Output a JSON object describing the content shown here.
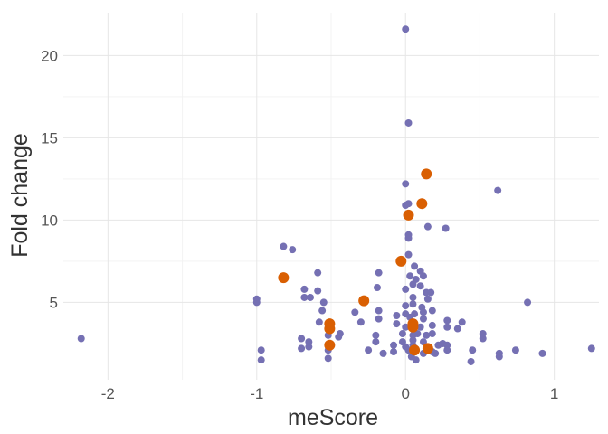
{
  "chart_data": {
    "type": "scatter",
    "xlabel": "meScore",
    "ylabel": "Fold change",
    "xlim": [
      -2.3,
      1.3
    ],
    "ylim": [
      0.3,
      22.6
    ],
    "x_ticks": [
      -2,
      -1,
      0,
      1
    ],
    "x_tick_labels": [
      "-2",
      "-1",
      "0",
      "1"
    ],
    "y_ticks": [
      5,
      10,
      15,
      20
    ],
    "y_tick_labels": [
      "5",
      "10",
      "15",
      "20"
    ],
    "grid": true,
    "legend": "none",
    "colors": {
      "series_a": "#7570b3",
      "series_b": "#d95f02"
    },
    "series": [
      {
        "color": "#7570b3",
        "marker_size": "small",
        "points": [
          [
            0.0,
            21.6
          ],
          [
            0.02,
            15.9
          ],
          [
            0.62,
            11.8
          ],
          [
            0.0,
            12.2
          ],
          [
            0.02,
            11.0
          ],
          [
            0.0,
            10.9
          ],
          [
            0.15,
            9.6
          ],
          [
            0.27,
            9.5
          ],
          [
            0.02,
            9.1
          ],
          [
            0.02,
            8.9
          ],
          [
            -0.82,
            8.4
          ],
          [
            -0.76,
            8.2
          ],
          [
            0.02,
            7.9
          ],
          [
            0.06,
            7.2
          ],
          [
            0.1,
            6.9
          ],
          [
            0.12,
            6.6
          ],
          [
            -0.59,
            6.8
          ],
          [
            -0.18,
            6.8
          ],
          [
            0.03,
            6.6
          ],
          [
            0.07,
            6.4
          ],
          [
            -0.68,
            5.8
          ],
          [
            -0.59,
            5.7
          ],
          [
            -0.68,
            5.3
          ],
          [
            -0.64,
            5.3
          ],
          [
            -0.19,
            5.9
          ],
          [
            0.05,
            6.1
          ],
          [
            0.1,
            6.0
          ],
          [
            0.0,
            5.8
          ],
          [
            0.14,
            5.6
          ],
          [
            0.17,
            5.6
          ],
          [
            -1.0,
            5.2
          ],
          [
            -1.0,
            5.0
          ],
          [
            -0.55,
            5.0
          ],
          [
            0.82,
            5.0
          ],
          [
            0.05,
            5.3
          ],
          [
            0.15,
            5.2
          ],
          [
            0.11,
            4.7
          ],
          [
            0.0,
            4.8
          ],
          [
            0.05,
            4.9
          ],
          [
            0.18,
            4.5
          ],
          [
            0.12,
            4.4
          ],
          [
            -0.34,
            4.4
          ],
          [
            -0.18,
            4.5
          ],
          [
            -0.56,
            4.5
          ],
          [
            -0.18,
            4.0
          ],
          [
            -0.06,
            4.2
          ],
          [
            0.0,
            4.3
          ],
          [
            0.03,
            4.1
          ],
          [
            0.06,
            4.3
          ],
          [
            0.12,
            4.0
          ],
          [
            0.28,
            3.9
          ],
          [
            0.38,
            3.8
          ],
          [
            -0.3,
            3.8
          ],
          [
            -0.58,
            3.8
          ],
          [
            -0.06,
            3.7
          ],
          [
            0.0,
            3.5
          ],
          [
            0.05,
            3.6
          ],
          [
            0.1,
            3.5
          ],
          [
            0.18,
            3.6
          ],
          [
            0.28,
            3.5
          ],
          [
            0.35,
            3.4
          ],
          [
            -0.44,
            3.1
          ],
          [
            -0.2,
            3.0
          ],
          [
            -0.52,
            3.0
          ],
          [
            -0.45,
            2.9
          ],
          [
            -0.7,
            2.8
          ],
          [
            -0.65,
            2.6
          ],
          [
            -0.02,
            3.1
          ],
          [
            0.05,
            3.0
          ],
          [
            0.08,
            3.1
          ],
          [
            0.14,
            3.0
          ],
          [
            0.18,
            3.1
          ],
          [
            0.52,
            3.1
          ],
          [
            0.52,
            2.8
          ],
          [
            -0.2,
            2.6
          ],
          [
            -0.02,
            2.6
          ],
          [
            0.05,
            2.7
          ],
          [
            0.12,
            2.6
          ],
          [
            0.22,
            2.4
          ],
          [
            0.25,
            2.5
          ],
          [
            0.28,
            2.4
          ],
          [
            -0.08,
            2.4
          ],
          [
            0.0,
            2.3
          ],
          [
            0.05,
            2.4
          ],
          [
            -0.65,
            2.3
          ],
          [
            -0.7,
            2.2
          ],
          [
            -0.52,
            2.1
          ],
          [
            -0.25,
            2.1
          ],
          [
            -0.08,
            2.0
          ],
          [
            -0.15,
            1.9
          ],
          [
            0.02,
            2.1
          ],
          [
            0.18,
            2.0
          ],
          [
            0.2,
            1.9
          ],
          [
            0.28,
            2.1
          ],
          [
            0.45,
            2.1
          ],
          [
            0.63,
            1.9
          ],
          [
            0.63,
            1.7
          ],
          [
            0.74,
            2.1
          ],
          [
            0.92,
            1.9
          ],
          [
            1.25,
            2.2
          ],
          [
            -0.97,
            2.1
          ],
          [
            -0.97,
            1.5
          ],
          [
            -0.52,
            1.6
          ],
          [
            0.04,
            1.7
          ],
          [
            0.07,
            1.5
          ],
          [
            0.12,
            1.9
          ],
          [
            0.44,
            1.4
          ],
          [
            -2.18,
            2.8
          ]
        ]
      },
      {
        "color": "#d95f02",
        "marker_size": "large",
        "points": [
          [
            0.14,
            12.8
          ],
          [
            0.11,
            11.0
          ],
          [
            0.02,
            10.3
          ],
          [
            -0.03,
            7.5
          ],
          [
            -0.82,
            6.5
          ],
          [
            -0.28,
            5.1
          ],
          [
            -0.51,
            3.7
          ],
          [
            -0.51,
            3.4
          ],
          [
            -0.51,
            2.4
          ],
          [
            0.05,
            3.7
          ],
          [
            0.05,
            3.5
          ],
          [
            0.06,
            2.1
          ],
          [
            0.15,
            2.2
          ]
        ]
      }
    ]
  }
}
